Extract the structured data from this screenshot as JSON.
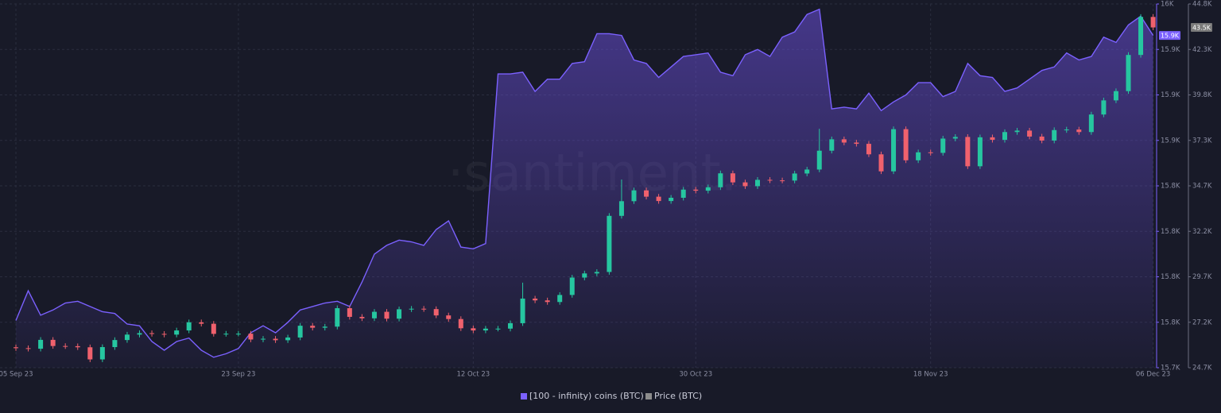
{
  "chart_data": {
    "type": "line_candlestick",
    "watermark": "·santiment.",
    "categories": [
      "05 Sep 23",
      null,
      null,
      null,
      null,
      null,
      null,
      null,
      null,
      null,
      null,
      null,
      null,
      null,
      null,
      null,
      null,
      null,
      "23 Sep 23",
      null,
      null,
      null,
      null,
      null,
      null,
      null,
      null,
      null,
      null,
      null,
      null,
      null,
      null,
      null,
      null,
      null,
      null,
      "12 Oct 23",
      null,
      null,
      null,
      null,
      null,
      null,
      null,
      null,
      null,
      null,
      null,
      null,
      null,
      null,
      null,
      null,
      null,
      "30 Oct 23",
      null,
      null,
      null,
      null,
      null,
      null,
      null,
      null,
      null,
      null,
      null,
      null,
      null,
      null,
      null,
      null,
      null,
      null,
      "18 Nov 23",
      null,
      null,
      null,
      null,
      null,
      null,
      null,
      null,
      null,
      null,
      null,
      null,
      null,
      null,
      null,
      null,
      null,
      "06 Dec 23"
    ],
    "series": [
      {
        "name": "[100 - infinity) coins (BTC)",
        "type": "line",
        "color": "#7b61ff",
        "axis": "y",
        "value_label": "15.9K",
        "values": [
          15772,
          15789,
          15775,
          15778,
          15782,
          15783,
          15780,
          15777,
          15776,
          15770,
          15769,
          15760,
          15755,
          15760,
          15762,
          15755,
          15751,
          15753,
          15756,
          15765,
          15769,
          15765,
          15771,
          15778,
          15780,
          15782,
          15783,
          15780,
          15794,
          15810,
          15815,
          15818,
          15817,
          15815,
          15824,
          15829,
          15814,
          15813,
          15816,
          15913,
          15913,
          15914,
          15903,
          15910,
          15910,
          15919,
          15920,
          15936,
          15936,
          15935,
          15921,
          15919,
          15911,
          15917,
          15923,
          15924,
          15925,
          15914,
          15912,
          15924,
          15927,
          15923,
          15934,
          15937,
          15947,
          15950,
          15893,
          15894,
          15893,
          15902,
          15892,
          15897,
          15901,
          15908,
          15908,
          15900,
          15903,
          15919,
          15912,
          15911,
          15903,
          15905,
          15910,
          15915,
          15917,
          15925,
          15921,
          15923,
          15934,
          15931,
          15941,
          15946,
          15935
        ]
      },
      {
        "name": "Price (BTC)",
        "type": "candlestick",
        "color": "#8c8c8c",
        "up_color": "#26c6a0",
        "down_color": "#f0616d",
        "axis": "y2",
        "value_label": "43.5K",
        "open": [
          25830,
          25780,
          25750,
          26240,
          25900,
          25890,
          25830,
          25160,
          25840,
          26230,
          26530,
          26610,
          26570,
          26530,
          26760,
          27210,
          27130,
          26570,
          26580,
          26580,
          26260,
          26300,
          26220,
          26370,
          27020,
          26910,
          26970,
          27990,
          27510,
          27430,
          27790,
          27410,
          27930,
          27960,
          27940,
          27590,
          27390,
          26880,
          26760,
          26860,
          26860,
          27160,
          28520,
          28420,
          28330,
          28720,
          29680,
          29910,
          29990,
          33090,
          33900,
          34500,
          34150,
          33910,
          34090,
          34540,
          34480,
          34670,
          35440,
          34940,
          34730,
          35080,
          35050,
          35040,
          35430,
          35650,
          36690,
          37320,
          37140,
          37070,
          36490,
          35550,
          37880,
          36160,
          36600,
          36570,
          37360,
          37450,
          35830,
          37430,
          37290,
          37720,
          37800,
          37470,
          37250,
          37830,
          37860,
          37720,
          38690,
          39470,
          39980,
          41980,
          44080
        ],
        "high": [
          25980,
          25930,
          26390,
          26390,
          26050,
          26040,
          25980,
          25990,
          26380,
          26680,
          26760,
          26760,
          26720,
          26910,
          27360,
          27360,
          27280,
          26730,
          26730,
          26730,
          26450,
          26450,
          26520,
          27170,
          27170,
          27120,
          28140,
          28140,
          27660,
          27940,
          27940,
          28080,
          28110,
          28110,
          28090,
          27740,
          27540,
          27030,
          27010,
          27010,
          27310,
          29400,
          28670,
          28570,
          28870,
          29830,
          30060,
          30140,
          33240,
          35100,
          34650,
          34650,
          34300,
          34240,
          34690,
          34690,
          34820,
          35590,
          35590,
          35090,
          35230,
          35230,
          35200,
          35580,
          35800,
          37900,
          37470,
          37470,
          37290,
          37220,
          36640,
          38030,
          38030,
          36750,
          36750,
          37510,
          37600,
          37600,
          37580,
          37580,
          37870,
          37950,
          37950,
          37620,
          37980,
          38010,
          38010,
          38840,
          39620,
          40130,
          42130,
          44230,
          44230
        ],
        "low": [
          25630,
          25600,
          25600,
          25750,
          25740,
          25680,
          25010,
          25010,
          25690,
          26080,
          26380,
          26420,
          26380,
          26380,
          26610,
          26980,
          26420,
          26420,
          26430,
          26110,
          26110,
          26070,
          26070,
          26220,
          26760,
          26760,
          26820,
          27360,
          27280,
          27280,
          27260,
          27260,
          27780,
          27790,
          27440,
          27240,
          26730,
          26610,
          26610,
          26710,
          26710,
          27010,
          28270,
          28180,
          28180,
          28570,
          29530,
          29760,
          29840,
          32940,
          33750,
          34000,
          33760,
          33760,
          33940,
          34330,
          34330,
          34520,
          34790,
          34580,
          34580,
          34900,
          34890,
          34890,
          35280,
          35500,
          36540,
          36990,
          36920,
          36340,
          35400,
          35400,
          36010,
          36010,
          36420,
          36420,
          37210,
          35680,
          35680,
          37140,
          37140,
          37570,
          37320,
          37100,
          37100,
          37680,
          37570,
          37570,
          38540,
          39320,
          39830,
          41830,
          43350
        ],
        "close": [
          25780,
          25750,
          26240,
          25900,
          25890,
          25830,
          25160,
          25840,
          26230,
          26530,
          26610,
          26570,
          26530,
          26760,
          27210,
          27130,
          26570,
          26580,
          26580,
          26260,
          26300,
          26220,
          26370,
          27020,
          26910,
          26970,
          27990,
          27510,
          27430,
          27790,
          27410,
          27930,
          27960,
          27940,
          27590,
          27390,
          26880,
          26760,
          26860,
          26860,
          27160,
          28520,
          28420,
          28330,
          28720,
          29680,
          29910,
          29990,
          33090,
          33900,
          34500,
          34150,
          33910,
          34090,
          34540,
          34480,
          34670,
          35440,
          34940,
          34730,
          35080,
          35050,
          35040,
          35430,
          35650,
          36690,
          37320,
          37140,
          37070,
          36490,
          35550,
          37880,
          36160,
          36600,
          36570,
          37360,
          37450,
          35830,
          37430,
          37290,
          37720,
          37800,
          37470,
          37250,
          37830,
          37860,
          37720,
          38690,
          39470,
          39980,
          41980,
          44080,
          43500
        ]
      }
    ],
    "ylim": [
      15745,
      15953
    ],
    "yticks": [
      {
        "value": 15745,
        "label": "15.7K"
      },
      {
        "value": 15771,
        "label": "15.8K"
      },
      {
        "value": 15797,
        "label": "15.8K"
      },
      {
        "value": 15823,
        "label": "15.8K"
      },
      {
        "value": 15849,
        "label": "15.8K"
      },
      {
        "value": 15875,
        "label": "15.9K"
      },
      {
        "value": 15901,
        "label": "15.9K"
      },
      {
        "value": 15927,
        "label": "15.9K"
      },
      {
        "value": 15953,
        "label": "16K"
      }
    ],
    "y2lim": [
      24700,
      44796
    ],
    "y2ticks": [
      {
        "value": 24700,
        "label": "24.7K"
      },
      {
        "value": 27212,
        "label": "27.2K"
      },
      {
        "value": 29724,
        "label": "29.7K"
      },
      {
        "value": 32236,
        "label": "32.2K"
      },
      {
        "value": 34748,
        "label": "34.7K"
      },
      {
        "value": 37260,
        "label": "37.3K"
      },
      {
        "value": 39772,
        "label": "39.8K"
      },
      {
        "value": 42284,
        "label": "42.3K"
      },
      {
        "value": 44796,
        "label": "44.8K"
      }
    ],
    "grid": true,
    "legend": "bottom"
  }
}
